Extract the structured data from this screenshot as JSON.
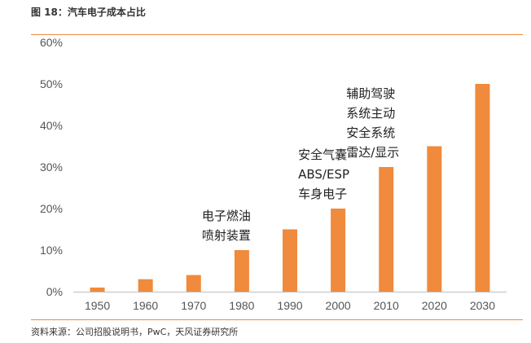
{
  "figure": {
    "title": "图 18：汽车电子成本占比",
    "source": "资料来源：公司招股说明书，PwC，天风证券研究所"
  },
  "colors": {
    "bar": "#f08a3c",
    "axis": "#bfbfbf",
    "rule": "#f08a3c"
  },
  "chart_data": {
    "type": "bar",
    "title": "汽车电子成本占比",
    "xlabel": "",
    "ylabel": "",
    "categories": [
      "1950",
      "1960",
      "1970",
      "1980",
      "1990",
      "2000",
      "2010",
      "2020",
      "2030"
    ],
    "values": [
      1,
      3,
      4,
      10,
      15,
      20,
      30,
      35,
      50
    ],
    "unit": "%",
    "ylim": [
      0,
      60
    ],
    "yticks": [
      0,
      10,
      20,
      30,
      40,
      50,
      60
    ],
    "ytick_labels": [
      "0%",
      "10%",
      "20%",
      "30%",
      "40%",
      "50%",
      "60%"
    ],
    "grid": false,
    "legend": "none",
    "annotations": [
      {
        "category": "1980",
        "lines": [
          "电子燃油",
          "喷射装置"
        ]
      },
      {
        "category": "2000",
        "lines": [
          "安全气囊",
          "ABS/ESP",
          "车身电子"
        ]
      },
      {
        "category": "2010",
        "lines": [
          "辅助驾驶",
          "系统主动",
          "安全系统",
          "雷达/显示"
        ]
      }
    ]
  }
}
